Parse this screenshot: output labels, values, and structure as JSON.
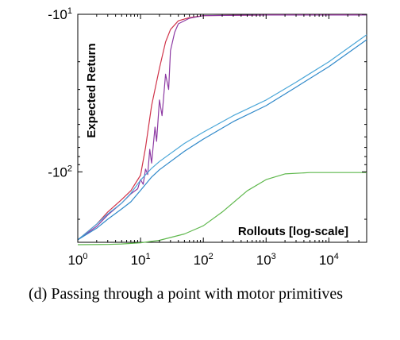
{
  "chart_data": {
    "type": "line",
    "title": "",
    "xlabel": "Rollouts [log-scale]",
    "ylabel": "Expected Return",
    "x_scale": "log",
    "y_scale": "log",
    "x_range": [
      1,
      40000
    ],
    "y_range": [
      -10,
      -280
    ],
    "grid": false,
    "x_ticks": [
      {
        "base": "10",
        "exp": "0",
        "value": 1
      },
      {
        "base": "10",
        "exp": "1",
        "value": 10
      },
      {
        "base": "10",
        "exp": "2",
        "value": 100
      },
      {
        "base": "10",
        "exp": "3",
        "value": 1000
      },
      {
        "base": "10",
        "exp": "4",
        "value": 10000
      }
    ],
    "y_ticks": [
      {
        "base": "-10",
        "exp": "1",
        "value": -10
      },
      {
        "base": "-10",
        "exp": "2",
        "value": -100
      }
    ],
    "series": [
      {
        "color": "#d0344a",
        "points": [
          [
            1,
            -270
          ],
          [
            2,
            -215
          ],
          [
            3,
            -180
          ],
          [
            5,
            -150
          ],
          [
            7,
            -132
          ],
          [
            10,
            -105
          ],
          [
            12,
            -70
          ],
          [
            15,
            -38
          ],
          [
            20,
            -22
          ],
          [
            25,
            -15
          ],
          [
            30,
            -12.5
          ],
          [
            40,
            -11
          ],
          [
            60,
            -10.5
          ],
          [
            100,
            -10.2
          ],
          [
            1000,
            -10.1
          ],
          [
            40000,
            -10.1
          ]
        ]
      },
      {
        "color": "#8d3aa3",
        "points": [
          [
            1,
            -270
          ],
          [
            2,
            -222
          ],
          [
            3,
            -188
          ],
          [
            5,
            -158
          ],
          [
            7,
            -138
          ],
          [
            9,
            -128
          ],
          [
            10,
            -112
          ],
          [
            11,
            -120
          ],
          [
            12,
            -96
          ],
          [
            13,
            -104
          ],
          [
            14,
            -72
          ],
          [
            15,
            -88
          ],
          [
            17,
            -52
          ],
          [
            18,
            -64
          ],
          [
            20,
            -35
          ],
          [
            22,
            -44
          ],
          [
            25,
            -24
          ],
          [
            28,
            -30
          ],
          [
            30,
            -17
          ],
          [
            35,
            -13
          ],
          [
            40,
            -11.5
          ],
          [
            60,
            -10.6
          ],
          [
            100,
            -10.2
          ],
          [
            1000,
            -10.1
          ],
          [
            40000,
            -10.1
          ]
        ]
      },
      {
        "color": "#4aa6d8",
        "points": [
          [
            1,
            -270
          ],
          [
            2,
            -215
          ],
          [
            3,
            -185
          ],
          [
            5,
            -158
          ],
          [
            7,
            -137
          ],
          [
            10,
            -113
          ],
          [
            15,
            -95
          ],
          [
            20,
            -86
          ],
          [
            50,
            -66
          ],
          [
            100,
            -56
          ],
          [
            300,
            -44
          ],
          [
            1000,
            -35
          ],
          [
            3000,
            -27
          ],
          [
            10000,
            -20
          ],
          [
            40000,
            -13.5
          ]
        ]
      },
      {
        "color": "#2f88c9",
        "points": [
          [
            1,
            -270
          ],
          [
            2,
            -228
          ],
          [
            3,
            -200
          ],
          [
            5,
            -172
          ],
          [
            7,
            -155
          ],
          [
            10,
            -131
          ],
          [
            15,
            -108
          ],
          [
            20,
            -97
          ],
          [
            50,
            -74
          ],
          [
            100,
            -62
          ],
          [
            300,
            -48
          ],
          [
            1000,
            -38
          ],
          [
            3000,
            -29
          ],
          [
            10000,
            -21.5
          ],
          [
            40000,
            -14.5
          ]
        ]
      },
      {
        "color": "#5fb84d",
        "points": [
          [
            1,
            -290
          ],
          [
            3,
            -289
          ],
          [
            5,
            -287
          ],
          [
            10,
            -282
          ],
          [
            20,
            -272
          ],
          [
            50,
            -248
          ],
          [
            100,
            -220
          ],
          [
            200,
            -180
          ],
          [
            500,
            -132
          ],
          [
            1000,
            -112
          ],
          [
            2000,
            -103
          ],
          [
            5000,
            -101
          ],
          [
            40000,
            -101
          ]
        ]
      }
    ]
  },
  "caption": "(d) Passing through a point with motor primitives"
}
